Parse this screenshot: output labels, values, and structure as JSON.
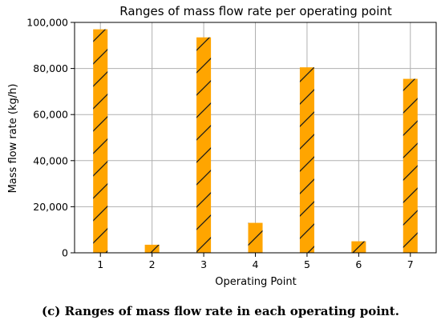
{
  "chart_data": {
    "type": "bar",
    "title": "Ranges of mass flow rate per operating point",
    "xlabel": "Operating Point",
    "ylabel": "Mass flow rate (kg/h)",
    "categories": [
      "1",
      "2",
      "3",
      "4",
      "5",
      "6",
      "7"
    ],
    "values": [
      97000,
      3500,
      93500,
      13000,
      80500,
      5000,
      75500
    ],
    "ylim": [
      0,
      100000
    ],
    "yticks": [
      0,
      20000,
      40000,
      60000,
      80000,
      100000
    ],
    "ytick_labels": [
      "0",
      "20,000",
      "40,000",
      "60,000",
      "80,000",
      "100,000"
    ],
    "grid": true,
    "bar_color": "#FFA500",
    "hatch_color": "#1a1a1a",
    "hatch": "diagonal"
  },
  "caption": "(c) Ranges of mass flow rate in each operating point."
}
